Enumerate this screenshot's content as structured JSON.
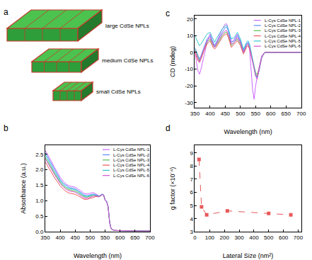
{
  "chart_data": [
    {
      "type": "illustration",
      "title": "a",
      "labels": [
        "large CdSe NPLs",
        "medium CdSe NPLs",
        "small CdSe NPLs"
      ]
    },
    {
      "type": "line",
      "title": "b",
      "xlabel": "Wavelength (nm)",
      "ylabel": "Absorbance (a.u.)",
      "x": [
        350,
        360,
        370,
        380,
        390,
        400,
        410,
        420,
        430,
        440,
        450,
        460,
        470,
        480,
        490,
        500,
        510,
        520,
        530,
        540,
        545,
        550,
        555,
        560,
        565,
        570,
        580,
        600,
        650,
        700
      ],
      "series": [
        {
          "name": "L-Cys CdSe NPL-1",
          "color": "#cc66ff",
          "values": [
            2.62,
            2.46,
            2.28,
            2.09,
            1.92,
            1.76,
            1.63,
            1.54,
            1.48,
            1.46,
            1.44,
            1.38,
            1.3,
            1.24,
            1.22,
            1.24,
            1.27,
            1.22,
            1.16,
            1.22,
            1.2,
            1.04,
            0.98,
            0.82,
            0.32,
            0.1,
            0.05,
            0.04,
            0.03,
            0.03
          ]
        },
        {
          "name": "L-Cys CdSe NPL-2",
          "color": "#5b8cff",
          "values": [
            2.55,
            2.38,
            2.2,
            2.01,
            1.84,
            1.69,
            1.57,
            1.49,
            1.43,
            1.41,
            1.39,
            1.33,
            1.25,
            1.19,
            1.17,
            1.19,
            1.22,
            1.19,
            1.14,
            1.21,
            1.19,
            1.03,
            0.98,
            0.82,
            0.32,
            0.1,
            0.05,
            0.04,
            0.03,
            0.03
          ]
        },
        {
          "name": "L-Cys CdSe NPL-3",
          "color": "#55c055",
          "values": [
            2.4,
            2.25,
            2.08,
            1.9,
            1.74,
            1.6,
            1.49,
            1.41,
            1.36,
            1.34,
            1.32,
            1.26,
            1.19,
            1.13,
            1.12,
            1.15,
            1.18,
            1.17,
            1.14,
            1.2,
            1.18,
            1.02,
            0.97,
            0.81,
            0.31,
            0.1,
            0.05,
            0.04,
            0.03,
            0.03
          ]
        },
        {
          "name": "L-Cys CdSe NPL-4",
          "color": "#f05a5a",
          "values": [
            2.25,
            2.1,
            1.93,
            1.76,
            1.61,
            1.48,
            1.38,
            1.3,
            1.25,
            1.23,
            1.21,
            1.16,
            1.1,
            1.05,
            1.05,
            1.08,
            1.12,
            1.14,
            1.13,
            1.2,
            1.18,
            1.02,
            0.97,
            0.81,
            0.31,
            0.1,
            0.05,
            0.04,
            0.03,
            0.03
          ]
        },
        {
          "name": "L-Cys CdSe NPL-5",
          "color": "#33c6cc",
          "values": [
            2.48,
            2.32,
            2.14,
            1.96,
            1.8,
            1.65,
            1.53,
            1.45,
            1.4,
            1.38,
            1.36,
            1.3,
            1.22,
            1.16,
            1.14,
            1.17,
            1.2,
            1.18,
            1.14,
            1.21,
            1.19,
            1.03,
            0.98,
            0.82,
            0.32,
            0.1,
            0.05,
            0.04,
            0.03,
            0.03
          ]
        },
        {
          "name": "L-Cys CdSe NPL-6",
          "color": "#d44fd4",
          "values": [
            2.35,
            2.2,
            2.03,
            1.86,
            1.7,
            1.56,
            1.45,
            1.37,
            1.32,
            1.3,
            1.28,
            1.22,
            1.15,
            1.09,
            1.08,
            1.11,
            1.15,
            1.16,
            1.13,
            1.2,
            1.18,
            1.02,
            0.97,
            0.81,
            0.31,
            0.1,
            0.05,
            0.04,
            0.03,
            0.03
          ]
        }
      ],
      "xlim": [
        350,
        700
      ],
      "xticks": [
        350,
        400,
        450,
        500,
        550,
        600,
        650,
        700
      ],
      "ylim": [
        0,
        2.8
      ],
      "yticks": [
        {
          "value": 0,
          "label": "0.0"
        },
        0.5,
        {
          "value": 1,
          "label": "1.0"
        },
        1.5,
        {
          "value": 2,
          "label": "2.0"
        },
        2.5
      ],
      "legend": "upper right",
      "grid": false
    },
    {
      "type": "line",
      "title": "c",
      "xlabel": "Wavelength (nm)",
      "ylabel": "CD (mdeg)",
      "x": [
        350,
        360,
        365,
        370,
        380,
        390,
        400,
        410,
        415,
        420,
        430,
        440,
        450,
        455,
        460,
        470,
        480,
        490,
        500,
        510,
        520,
        525,
        530,
        540,
        545,
        550,
        555,
        560,
        570,
        580,
        600,
        650,
        700
      ],
      "series": [
        {
          "name": "L-Cys CdSe NPL-1",
          "color": "#cc66ff",
          "values": [
            0,
            -11,
            -13,
            -10,
            -2,
            6,
            11,
            5,
            3,
            5,
            10,
            14,
            17,
            17,
            14,
            6,
            8,
            11,
            6,
            0,
            5,
            6,
            2,
            -22,
            -28,
            -20,
            -15,
            -10,
            -2,
            0,
            0,
            0,
            0
          ]
        },
        {
          "name": "L-Cys CdSe NPL-2",
          "color": "#5b8cff",
          "values": [
            3,
            -2,
            -4,
            -2,
            3,
            8,
            10,
            6,
            4,
            6,
            9,
            12,
            15,
            15,
            13,
            6,
            7,
            10,
            7,
            1,
            5,
            6,
            4,
            -5,
            -9,
            -14,
            -15,
            -12,
            -3,
            0,
            0,
            0,
            0
          ]
        },
        {
          "name": "L-Cys CdSe NPL-3",
          "color": "#55c055",
          "values": [
            2,
            -3,
            -5,
            -3,
            2,
            6,
            8,
            4,
            3,
            4,
            7,
            10,
            12,
            12,
            10,
            4,
            6,
            8,
            5,
            0,
            4,
            5,
            3,
            -5,
            -8,
            -12,
            -13,
            -11,
            -3,
            0,
            0,
            0,
            0
          ]
        },
        {
          "name": "L-Cys CdSe NPL-4",
          "color": "#f05a5a",
          "values": [
            0,
            -5,
            -6,
            -4,
            1,
            5,
            7,
            3,
            2,
            3,
            6,
            9,
            11,
            11,
            9,
            3,
            5,
            7,
            4,
            -1,
            3,
            4,
            2,
            -6,
            -9,
            -13,
            -14,
            -11,
            -3,
            0,
            0,
            0,
            0
          ]
        },
        {
          "name": "L-Cys CdSe NPL-5",
          "color": "#33c6cc",
          "values": [
            10,
            6,
            4,
            5,
            8,
            11,
            12,
            8,
            6,
            8,
            11,
            14,
            16,
            16,
            14,
            8,
            9,
            12,
            8,
            2,
            6,
            7,
            5,
            -4,
            -8,
            -13,
            -15,
            -12,
            -3,
            0,
            0,
            0,
            0
          ]
        },
        {
          "name": "L-Cys CdSe NPL-6",
          "color": "#d44fd4",
          "values": [
            1,
            -4,
            -6,
            -3,
            2,
            7,
            9,
            5,
            3,
            5,
            8,
            11,
            13,
            13,
            11,
            5,
            6,
            9,
            6,
            0,
            4,
            5,
            3,
            -6,
            -10,
            -14,
            -16,
            -12,
            -3,
            0,
            0,
            0,
            0
          ]
        }
      ],
      "xlim": [
        350,
        700
      ],
      "xticks": [
        350,
        400,
        450,
        500,
        550,
        600,
        650,
        700
      ],
      "ylim": [
        -33,
        22
      ],
      "yticks": [
        -30,
        -20,
        -10,
        0,
        10,
        20
      ],
      "legend": "upper right",
      "grid": false
    },
    {
      "type": "line",
      "title": "d",
      "xlabel": "Lateral Size (nm²)",
      "ylabel": "g factor (×10⁻⁴)",
      "x": [
        28,
        45,
        80,
        220,
        500,
        650
      ],
      "values": [
        8.5,
        4.9,
        4.3,
        4.6,
        4.4,
        4.3
      ],
      "color": "#e8595a",
      "marker": "square",
      "line_style": "dash",
      "xlim": [
        0,
        720
      ],
      "xticks": [
        0,
        100,
        200,
        300,
        400,
        500,
        600,
        700
      ],
      "ylim": [
        3,
        9.6
      ],
      "yticks": [
        3,
        4,
        5,
        6,
        7,
        8,
        9
      ],
      "grid": false
    }
  ]
}
